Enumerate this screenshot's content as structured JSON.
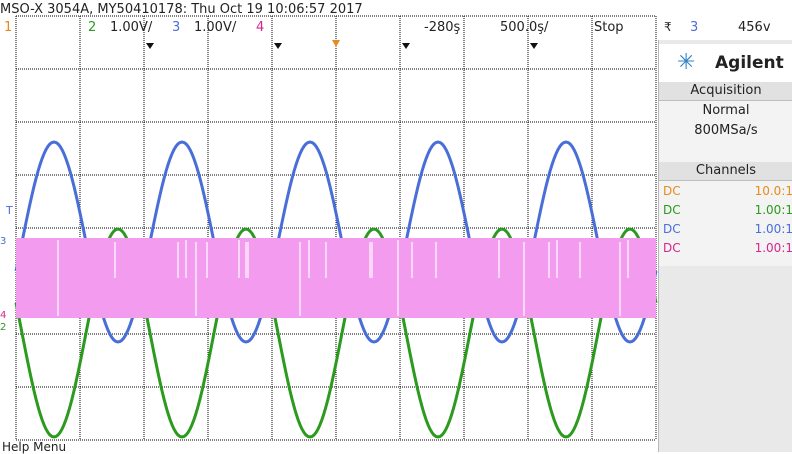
{
  "header": {
    "model": "MSO-X 3054A, MY50410178: Thu Oct 19 10:06:57 2017",
    "ch1": "1",
    "ch2": "2",
    "ch2_scale": "1.00V/",
    "ch3": "3",
    "ch3_scale": "1.00V/",
    "ch4": "4",
    "delay": "-280ş",
    "timebase": "500.0ş/",
    "run_state": "Stop",
    "trigger_source": "3",
    "trigger_level": "456v"
  },
  "side": {
    "brand": "Agilent",
    "acquisition_title": "Acquisition",
    "acquisition_mode": "Normal",
    "sample_rate": "800MSa/s",
    "channels_title": "Channels",
    "channels": [
      {
        "coupling": "DC",
        "value": "10.0:1",
        "color": "#e98a1c"
      },
      {
        "coupling": "DC",
        "value": "1.00:1",
        "color": "#2b9a1e"
      },
      {
        "coupling": "DC",
        "value": "1.00:1",
        "color": "#4a6ed8"
      },
      {
        "coupling": "DC",
        "value": "1.00:1",
        "color": "#d6258e"
      }
    ]
  },
  "footer": {
    "help": "Help Menu"
  },
  "colors": {
    "ch1": "#e98a1c",
    "ch2": "#2b9a1e",
    "ch3": "#4a6ed8",
    "ch4": "#d6258e",
    "digital_band": "#f39cef"
  }
}
